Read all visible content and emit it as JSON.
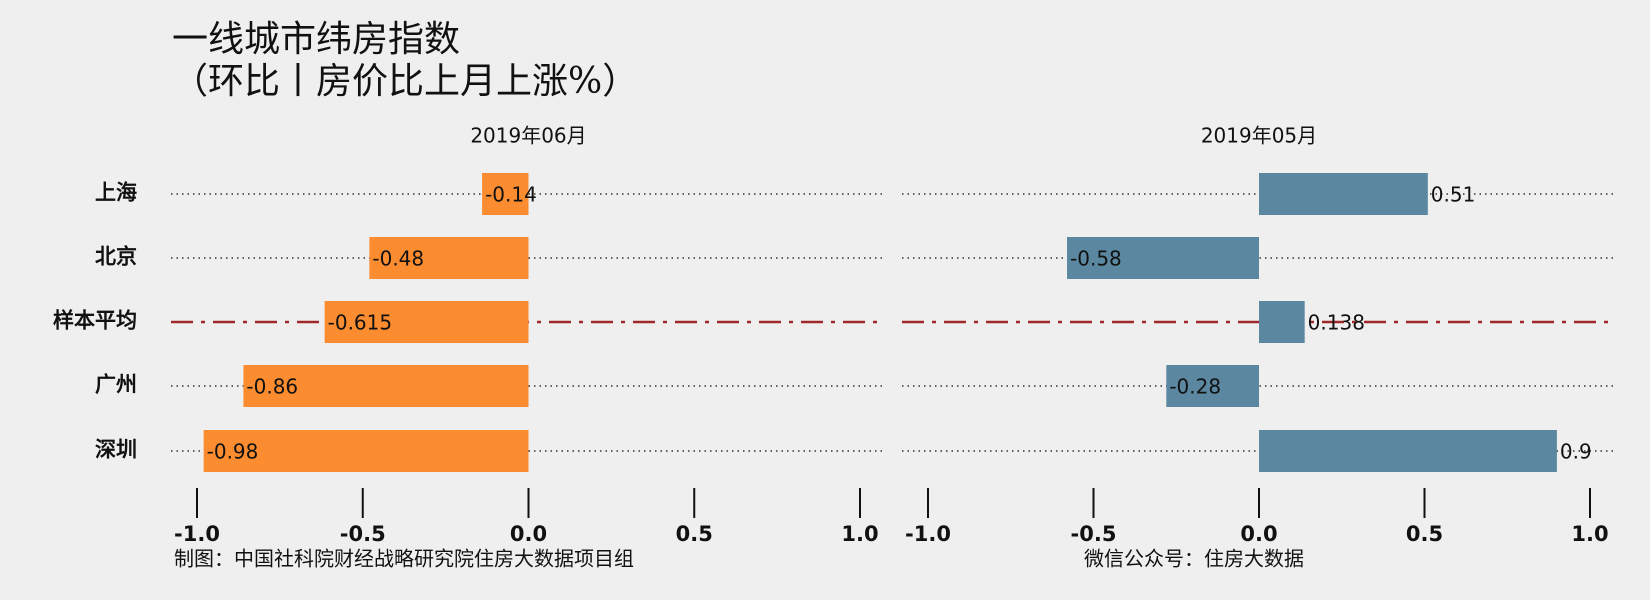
{
  "title": [
    "一线城市纬房指数",
    "（环比丨房价比上月上涨%）"
  ],
  "categories": [
    "上海",
    "北京",
    "样本平均",
    "广州",
    "深圳"
  ],
  "captions": [
    "制图：中国社科院财经战略研究院住房大数据项目组",
    "微信公众号：住房大数据"
  ],
  "chart_data": [
    {
      "type": "bar",
      "orientation": "horizontal",
      "title": "2019年06月",
      "values": [
        -0.14,
        -0.48,
        -0.615,
        -0.86,
        -0.98
      ],
      "color": "#fb8c2f",
      "xlim": [
        -1.0,
        1.0
      ],
      "xticks": [
        {
          "value": -1.0,
          "label": "-1.0"
        },
        {
          "value": -0.5,
          "label": "-0.5"
        },
        {
          "value": 0,
          "label": "0.0"
        },
        {
          "value": 0.5,
          "label": "0.5"
        },
        {
          "value": 1.0,
          "label": "1.0"
        }
      ],
      "reference_line": {
        "category": 2,
        "color": "#a0282a"
      }
    },
    {
      "type": "bar",
      "orientation": "horizontal",
      "title": "2019年05月",
      "values": [
        0.51,
        -0.58,
        0.138,
        -0.28,
        0.9
      ],
      "color": "#5b87a1",
      "xlim": [
        -1.0,
        1.0
      ],
      "xticks": [
        {
          "value": -1.0,
          "label": "-1.0"
        },
        {
          "value": -0.5,
          "label": "-0.5"
        },
        {
          "value": 0,
          "label": "0.0"
        },
        {
          "value": 0.5,
          "label": "0.5"
        },
        {
          "value": 1.0,
          "label": "1.0"
        }
      ],
      "reference_line": {
        "category": 2,
        "color": "#a0282a"
      }
    }
  ]
}
